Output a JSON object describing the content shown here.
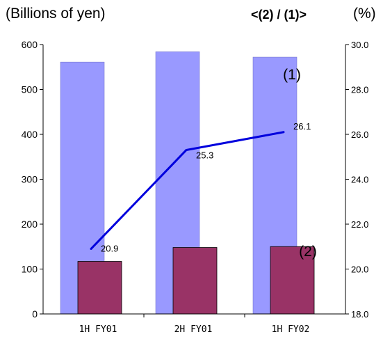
{
  "header": {
    "left_unit": "(Billions of yen)",
    "ratio_title": "<(2) / (1)>",
    "right_unit": "(%)"
  },
  "chart_data": {
    "type": "bar",
    "categories": [
      "1H FY01",
      "2H FY01",
      "1H FY02"
    ],
    "series": [
      {
        "name": "(1)",
        "kind": "bar",
        "axis": "left",
        "values": [
          561,
          584,
          572
        ],
        "color": "#9999ff"
      },
      {
        "name": "(2)",
        "kind": "bar",
        "axis": "left",
        "values": [
          117,
          148,
          150
        ],
        "color": "#993366"
      },
      {
        "kind": "line",
        "axis": "right",
        "values": [
          20.9,
          25.3,
          26.1
        ],
        "labels": [
          "20.9",
          "25.3",
          "26.1"
        ],
        "color": "#0000dd"
      }
    ],
    "y_left": {
      "ylim": [
        0,
        600
      ],
      "ticks": [
        "0",
        "100",
        "200",
        "300",
        "400",
        "500",
        "600"
      ]
    },
    "y_right": {
      "ylim": [
        18.0,
        30.0
      ],
      "ticks": [
        "18.0",
        "20.0",
        "22.0",
        "24.0",
        "26.0",
        "28.0",
        "30.0"
      ]
    },
    "bar_labels": {
      "first": "(1)",
      "second": "(2)"
    },
    "grid": false,
    "legend": "none"
  }
}
